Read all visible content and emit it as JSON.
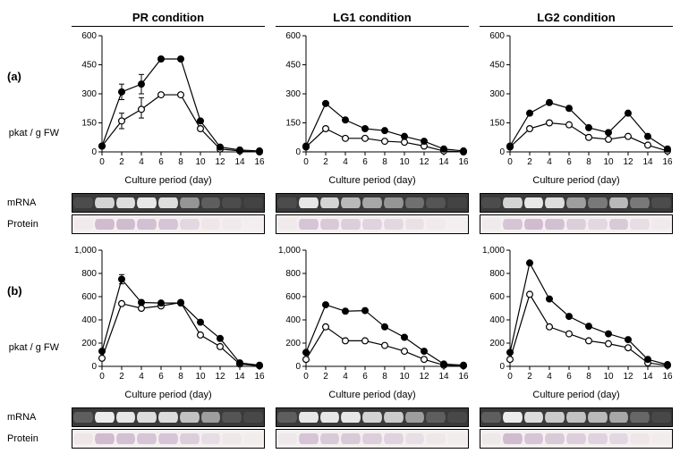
{
  "conditions": [
    "PR condition",
    "LG1 condition",
    "LG2 condition"
  ],
  "panels": [
    "(a)",
    "(b)"
  ],
  "x_label": "Culture period (day)",
  "y_label": "pkat / g FW",
  "x_values": [
    0,
    2,
    4,
    6,
    8,
    10,
    12,
    14,
    16
  ],
  "gel_labels": {
    "mrna": "mRNA",
    "protein": "Protein"
  },
  "colors": {
    "axis": "#000000",
    "line": "#000000",
    "filled_marker_fill": "#000000",
    "open_marker_fill": "#ffffff",
    "mrna_bg": "#3a3a3a",
    "mrna_band": "#f0f0f0",
    "protein_bg": "#f5f0f0",
    "protein_band": "#b090b5"
  },
  "panel_a": {
    "type": "line",
    "ylim": [
      0,
      600
    ],
    "ytick_step": 150,
    "charts": [
      {
        "filled": [
          30,
          310,
          350,
          480,
          480,
          160,
          25,
          10,
          5
        ],
        "open": [
          30,
          160,
          220,
          295,
          295,
          120,
          15,
          5,
          0
        ],
        "error_y": {
          "x": [
            2,
            4
          ],
          "filled": [
            [
              270,
              350
            ],
            [
              300,
              400
            ]
          ],
          "open": [
            [
              120,
              200
            ],
            [
              175,
              280
            ]
          ]
        },
        "mrna_intensity": [
          0.1,
          0.85,
          0.9,
          0.95,
          0.9,
          0.5,
          0.2,
          0.1,
          0.05
        ],
        "protein_intensity": [
          0.05,
          0.55,
          0.55,
          0.5,
          0.45,
          0.25,
          0.1,
          0.05,
          0.02
        ]
      },
      {
        "filled": [
          30,
          250,
          165,
          120,
          110,
          80,
          55,
          15,
          5
        ],
        "open": [
          25,
          120,
          70,
          70,
          55,
          50,
          30,
          5,
          0
        ],
        "mrna_intensity": [
          0.1,
          0.95,
          0.85,
          0.7,
          0.6,
          0.5,
          0.3,
          0.15,
          0.05
        ],
        "protein_intensity": [
          0.05,
          0.45,
          0.4,
          0.35,
          0.3,
          0.25,
          0.15,
          0.05,
          0.02
        ]
      },
      {
        "filled": [
          30,
          200,
          255,
          225,
          125,
          100,
          200,
          80,
          15
        ],
        "open": [
          25,
          120,
          150,
          140,
          75,
          65,
          80,
          35,
          5
        ],
        "mrna_intensity": [
          0.1,
          0.85,
          0.95,
          0.9,
          0.55,
          0.35,
          0.7,
          0.35,
          0.1
        ],
        "protein_intensity": [
          0.05,
          0.45,
          0.55,
          0.5,
          0.35,
          0.25,
          0.4,
          0.2,
          0.05
        ]
      }
    ]
  },
  "panel_b": {
    "type": "line",
    "ylim": [
      0,
      1000
    ],
    "ytick_step": 200,
    "charts": [
      {
        "filled": [
          130,
          750,
          550,
          545,
          545,
          380,
          240,
          30,
          10
        ],
        "open": [
          70,
          540,
          500,
          520,
          550,
          270,
          170,
          20,
          5
        ],
        "error_y": {
          "x": [
            2
          ],
          "filled": [
            [
              710,
              790
            ]
          ],
          "open": []
        },
        "mrna_intensity": [
          0.2,
          0.98,
          0.95,
          0.9,
          0.9,
          0.75,
          0.55,
          0.15,
          0.08
        ],
        "protein_intensity": [
          0.1,
          0.55,
          0.5,
          0.45,
          0.45,
          0.35,
          0.2,
          0.08,
          0.04
        ]
      },
      {
        "filled": [
          120,
          530,
          475,
          480,
          340,
          250,
          130,
          20,
          10
        ],
        "open": [
          60,
          340,
          220,
          220,
          180,
          130,
          60,
          10,
          5
        ],
        "mrna_intensity": [
          0.2,
          0.95,
          0.95,
          0.95,
          0.85,
          0.8,
          0.55,
          0.2,
          0.08
        ],
        "protein_intensity": [
          0.08,
          0.45,
          0.4,
          0.4,
          0.35,
          0.3,
          0.18,
          0.08,
          0.04
        ]
      },
      {
        "filled": [
          120,
          890,
          580,
          430,
          345,
          280,
          230,
          60,
          15
        ],
        "open": [
          60,
          620,
          340,
          280,
          220,
          195,
          160,
          30,
          8
        ],
        "mrna_intensity": [
          0.2,
          0.98,
          0.9,
          0.8,
          0.75,
          0.7,
          0.6,
          0.25,
          0.08
        ],
        "protein_intensity": [
          0.08,
          0.55,
          0.45,
          0.4,
          0.35,
          0.3,
          0.25,
          0.1,
          0.04
        ]
      }
    ]
  },
  "style": {
    "tick_fontsize": 10,
    "label_fontsize": 11,
    "header_fontsize": 13,
    "line_width": 1.2,
    "marker_radius": 3.4,
    "marker_stroke": 1.2
  }
}
